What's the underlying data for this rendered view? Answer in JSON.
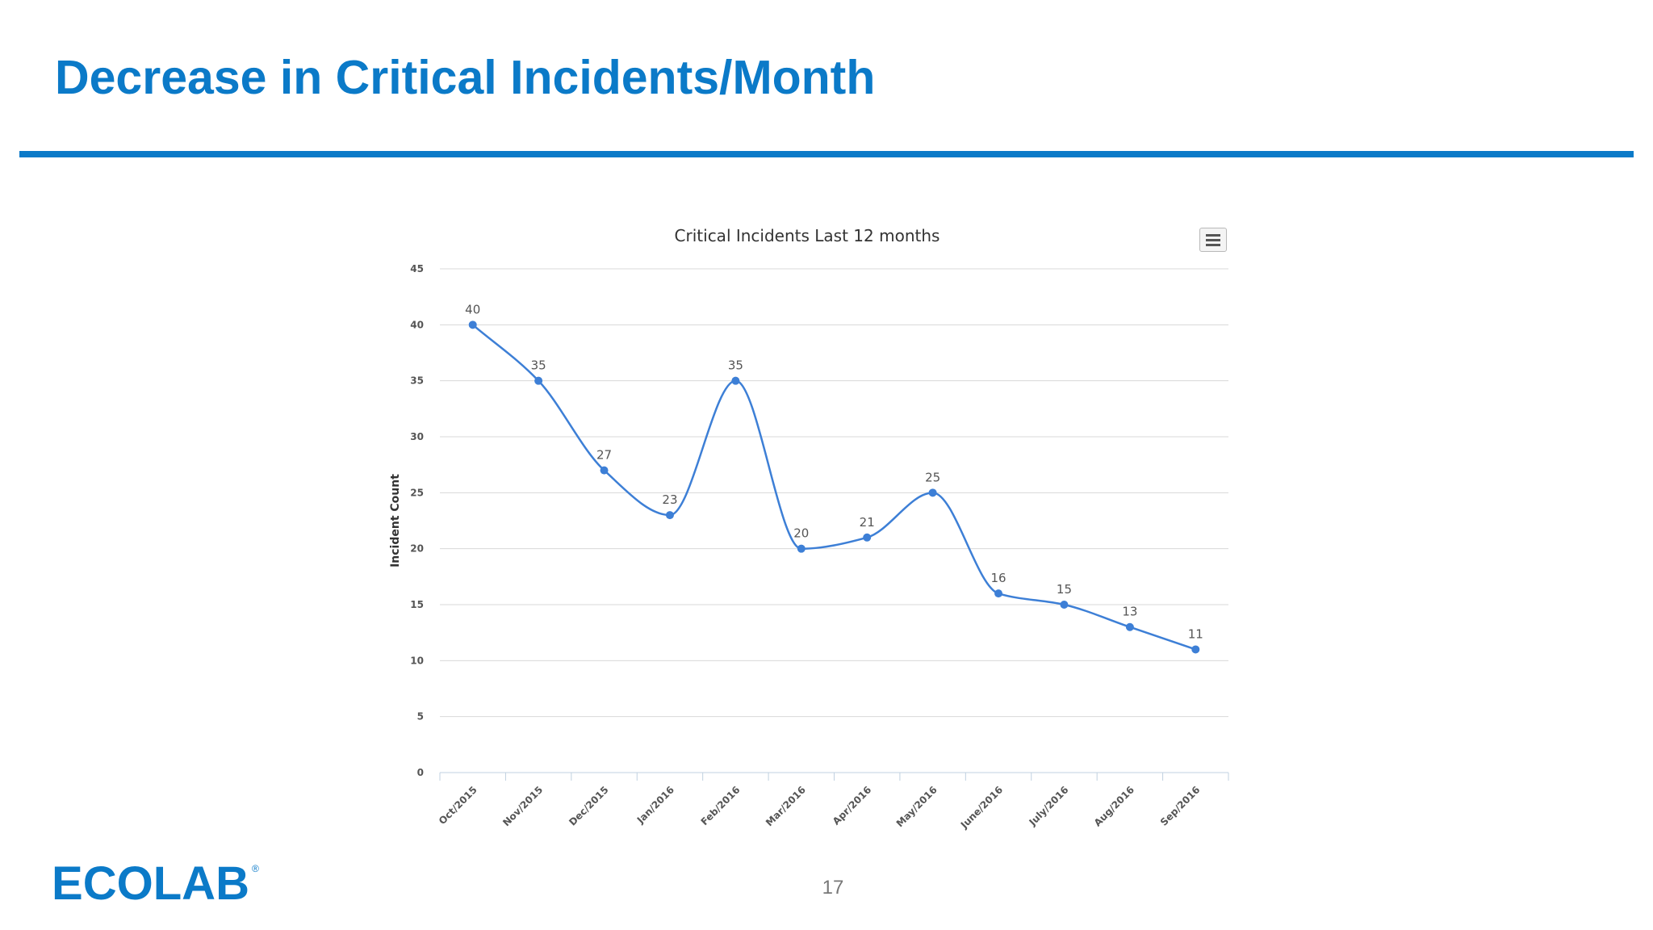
{
  "slide": {
    "title": "Decrease in Critical Incidents/Month",
    "page_number": "17",
    "logo_text": "ECOLAB",
    "accent_color": "#0b7ac8"
  },
  "chart_menu": {
    "icon": "hamburger-menu-icon"
  },
  "chart_data": {
    "type": "line",
    "title": "Critical Incidents Last 12 months",
    "xlabel": "",
    "ylabel": "Incident Count",
    "categories": [
      "Oct/2015",
      "Nov/2015",
      "Dec/2015",
      "Jan/2016",
      "Feb/2016",
      "Mar/2016",
      "Apr/2016",
      "May/2016",
      "June/2016",
      "July/2016",
      "Aug/2016",
      "Sep/2016"
    ],
    "series": [
      {
        "values": [
          40,
          35,
          27,
          23,
          35,
          20,
          21,
          25,
          16,
          15,
          13,
          11
        ],
        "color": "#3d7fd6"
      }
    ],
    "ylim": [
      0,
      45
    ],
    "yticks": [
      0,
      5,
      10,
      15,
      20,
      25,
      30,
      35,
      40,
      45
    ],
    "data_labels": true,
    "smooth": true,
    "grid": true,
    "legend": "none"
  }
}
